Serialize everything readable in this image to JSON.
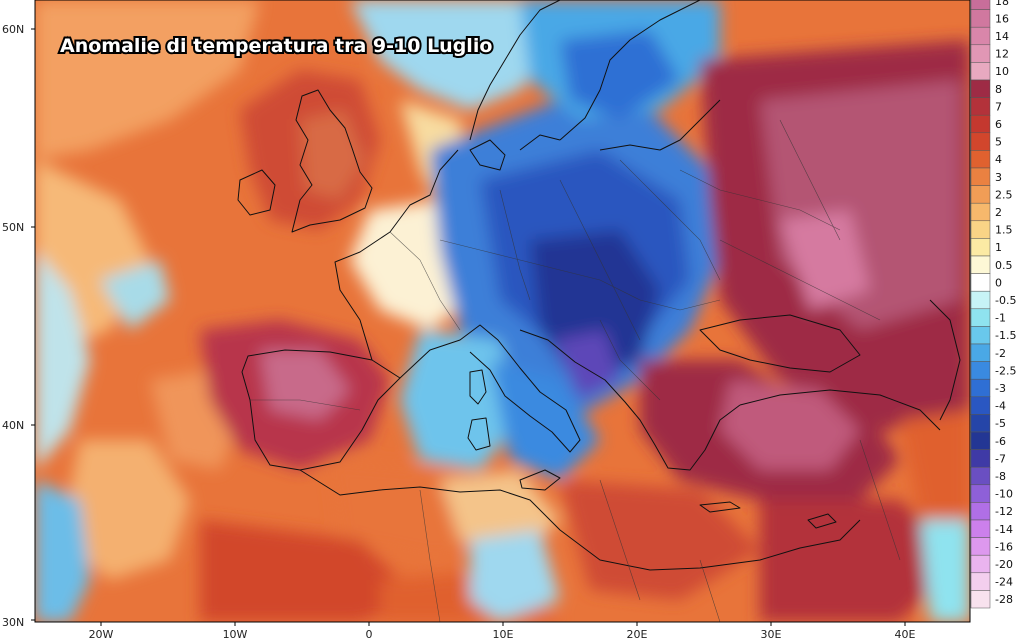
{
  "title": "Anomalie di temperatura tra 9-10 Luglio",
  "lat_labels": [
    "60N",
    "50N",
    "40N",
    "30N"
  ],
  "lon_labels": [
    "20W",
    "10W",
    "0",
    "10E",
    "20E",
    "30E",
    "40E"
  ],
  "colorbar": {
    "labels": [
      "18",
      "16",
      "14",
      "12",
      "10",
      "8",
      "7",
      "6",
      "5",
      "4",
      "3",
      "2.5",
      "2",
      "1.5",
      "1",
      "0.5",
      "0",
      "-0.5",
      "-1",
      "-1.5",
      "-2",
      "-2.5",
      "-3",
      "-4",
      "-5",
      "-6",
      "-7",
      "-8",
      "-10",
      "-12",
      "-14",
      "-16",
      "-20",
      "-24",
      "-28"
    ],
    "colors": [
      "#c86e9a",
      "#d0789f",
      "#d986aa",
      "#e197b5",
      "#e8a9c0",
      "#9e2b45",
      "#b3323a",
      "#c4382f",
      "#d2462c",
      "#e0612f",
      "#ea8141",
      "#f19d56",
      "#f6b86c",
      "#f9d486",
      "#fbeaa4",
      "#fdf8d6",
      "#ffffff",
      "#c7f3f6",
      "#8fe3ef",
      "#69c8ec",
      "#4aa8e6",
      "#3a8ae0",
      "#2f6fd4",
      "#2a57c2",
      "#2545a8",
      "#233694",
      "#3f3aa6",
      "#6a4fc2",
      "#8e60d8",
      "#b06fe6",
      "#cc80ec",
      "#dd98ee",
      "#eab4ef",
      "#f3cfee",
      "#f8e2ee"
    ]
  }
}
